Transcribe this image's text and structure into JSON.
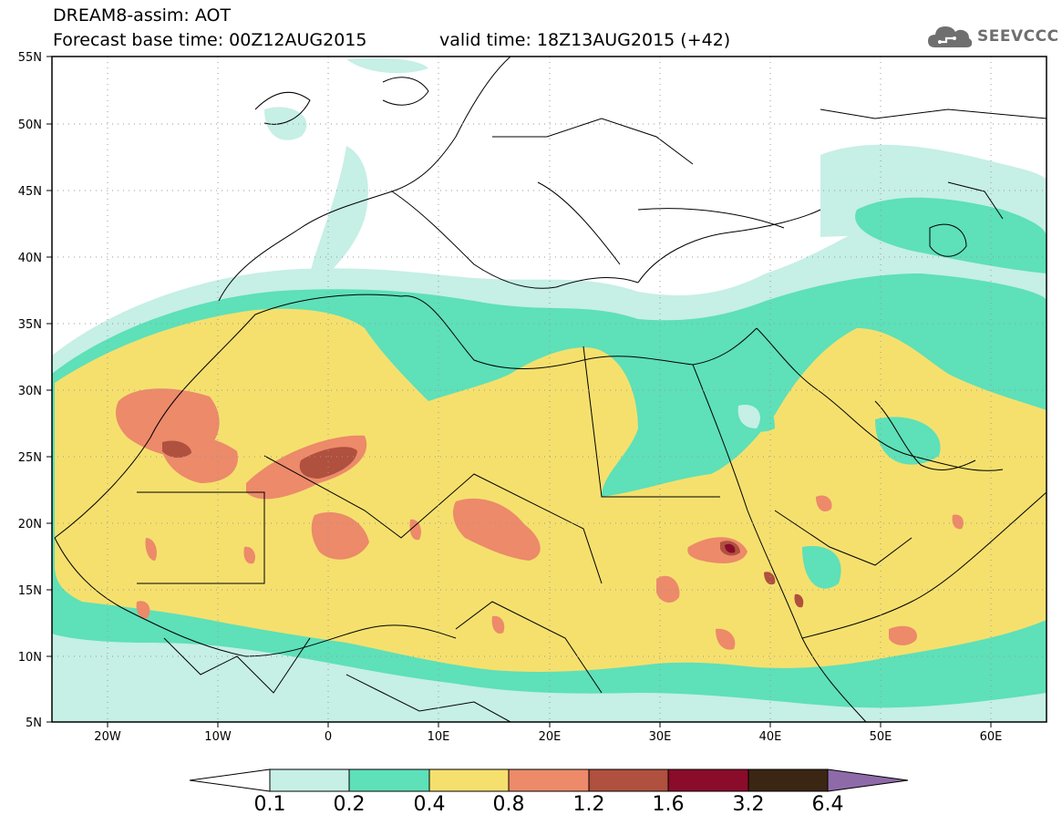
{
  "header": {
    "line1": "DREAM8-assim: AOT",
    "line2": "Forecast base time: 00Z12AUG2015",
    "valid": "valid time: 18Z13AUG2015 (+42)"
  },
  "logo": {
    "text": "SEEVCCC",
    "icon": "cloud-icon"
  },
  "map": {
    "lon_range": [
      -25,
      65
    ],
    "lat_range": [
      5,
      55
    ],
    "lat_ticks": [
      "55N",
      "50N",
      "45N",
      "40N",
      "35N",
      "30N",
      "25N",
      "20N",
      "15N",
      "10N",
      "5N"
    ],
    "lon_ticks": [
      "20W",
      "10W",
      "0",
      "10E",
      "20E",
      "30E",
      "40E",
      "50E",
      "60E"
    ],
    "grid": "dotted"
  },
  "colorbar": {
    "labels": [
      "0.1",
      "0.2",
      "0.4",
      "0.8",
      "1.2",
      "1.6",
      "3.2",
      "6.4"
    ],
    "colors": [
      "#ffffff",
      "#c6efe6",
      "#5ee0b8",
      "#f5e06e",
      "#ec8a6a",
      "#b0503e",
      "#8a0c2a",
      "#3b2614",
      "#8f6aa8"
    ]
  }
}
